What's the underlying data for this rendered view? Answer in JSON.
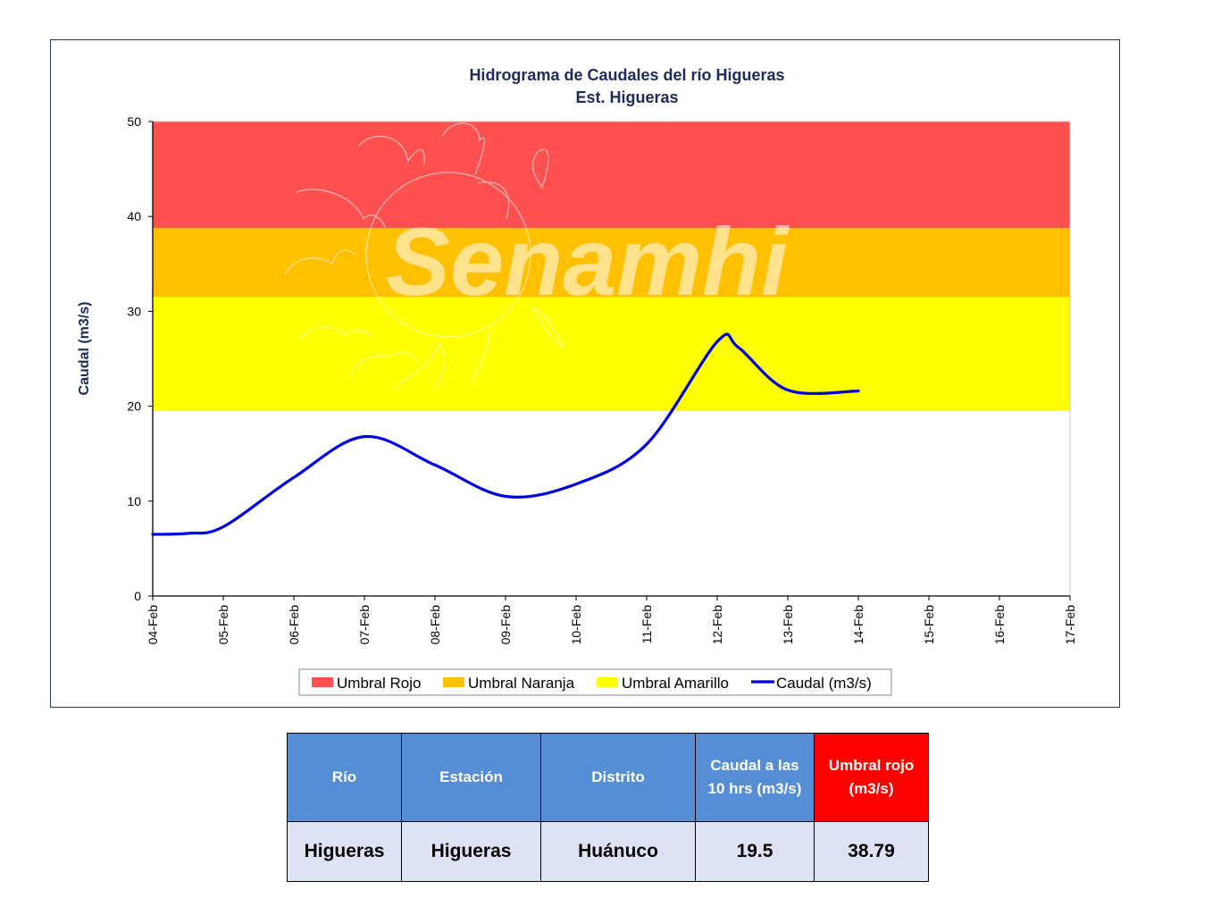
{
  "chart_data": {
    "type": "line",
    "title": "Hidrograma  de Caudales del río Higueras",
    "subtitle": "Est. Higueras",
    "ylabel": "Caudal (m3/s)",
    "xlabel": "",
    "ylim": [
      0,
      50
    ],
    "yticks": [
      0,
      10,
      20,
      30,
      40,
      50
    ],
    "categories": [
      "04-Feb",
      "05-Feb",
      "06-Feb",
      "07-Feb",
      "08-Feb",
      "09-Feb",
      "10-Feb",
      "11-Feb",
      "12-Feb",
      "13-Feb",
      "14-Feb",
      "15-Feb",
      "16-Feb",
      "17-Feb"
    ],
    "thresholds": [
      {
        "name": "Umbral Rojo",
        "from": 38.79,
        "to": 50,
        "color": "#ff5050"
      },
      {
        "name": "Umbral Naranja",
        "from": 31.5,
        "to": 38.79,
        "color": "#ffc000"
      },
      {
        "name": "Umbral Amarillo",
        "from": 19.5,
        "to": 31.5,
        "color": "#ffff00"
      }
    ],
    "series": [
      {
        "name": "Caudal (m3/s)",
        "color": "#0000e0",
        "x": [
          0,
          0.5,
          1,
          2,
          3,
          4,
          5,
          6,
          7,
          8,
          8.3,
          9,
          10
        ],
        "values": [
          6.5,
          6.6,
          7.3,
          12.5,
          16.8,
          13.8,
          10.5,
          11.8,
          16.0,
          26.8,
          26.2,
          21.7,
          21.6
        ]
      }
    ],
    "legend": [
      "Umbral Rojo",
      "Umbral Naranja",
      "Umbral Amarillo",
      "Caudal (m3/s)"
    ],
    "legend_position": "bottom",
    "grid": false
  },
  "watermark": "Senamhi",
  "table": {
    "headers": [
      "Río",
      "Estación",
      "Distrito",
      "Caudal a las 10 hrs (m3/s)",
      "Umbral rojo (m3/s)"
    ],
    "row": [
      "Higueras",
      "Higueras",
      "Huánuco",
      "19.5",
      "38.79"
    ]
  }
}
